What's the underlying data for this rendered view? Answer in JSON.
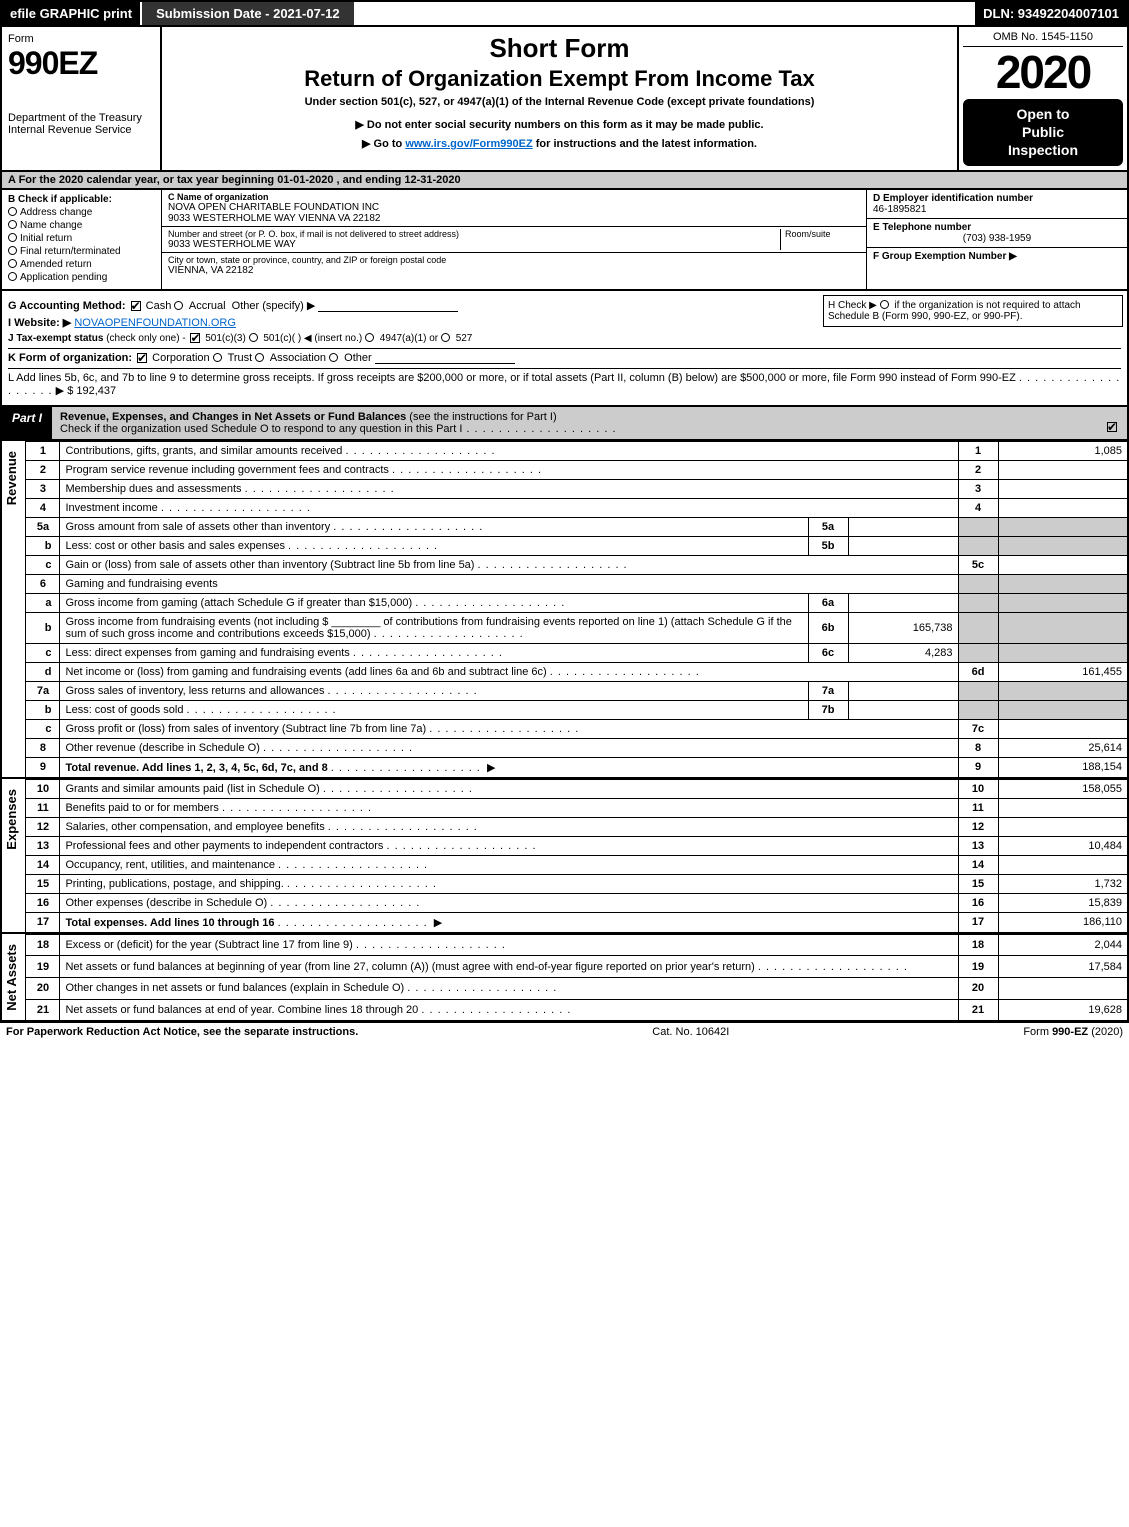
{
  "topbar": {
    "efile": "efile GRAPHIC print",
    "submission": "Submission Date - 2021-07-12",
    "dln": "DLN: 93492204007101"
  },
  "header": {
    "form_label": "Form",
    "form_num": "990EZ",
    "dept1": "Department of the Treasury",
    "dept2": "Internal Revenue Service",
    "title_short": "Short Form",
    "title_return": "Return of Organization Exempt From Income Tax",
    "under": "Under section 501(c), 527, or 4947(a)(1) of the Internal Revenue Code (except private foundations)",
    "warn": "▶ Do not enter social security numbers on this form as it may be made public.",
    "goto_pre": "▶ Go to ",
    "goto_link": "www.irs.gov/Form990EZ",
    "goto_post": " for instructions and the latest information.",
    "omb": "OMB No. 1545-1150",
    "year": "2020",
    "open1": "Open to",
    "open2": "Public",
    "open3": "Inspection"
  },
  "taxyear": "A   For the 2020 calendar year, or tax year beginning 01-01-2020 , and ending 12-31-2020",
  "colB": {
    "title": "B  Check if applicable:",
    "items": [
      "Address change",
      "Name change",
      "Initial return",
      "Final return/terminated",
      "Amended return",
      "Application pending"
    ]
  },
  "colC": {
    "name_label": "C Name of organization",
    "name": "NOVA OPEN CHARITABLE FOUNDATION INC",
    "name_addr": "9033 WESTERHOLME WAY VIENNA VA 22182",
    "street_label": "Number and street (or P. O. box, if mail is not delivered to street address)",
    "room_label": "Room/suite",
    "street": "9033 WESTERHOLME WAY",
    "city_label": "City or town, state or province, country, and ZIP or foreign postal code",
    "city": "VIENNA, VA  22182"
  },
  "colDEF": {
    "d_label": "D Employer identification number",
    "ein": "46-1895821",
    "e_label": "E Telephone number",
    "phone": "(703) 938-1959",
    "f_label": "F Group Exemption Number  ▶"
  },
  "rows": {
    "g_label": "G Accounting Method:",
    "g_cash": "Cash",
    "g_accrual": "Accrual",
    "g_other": "Other (specify) ▶",
    "h_text1": "H  Check ▶",
    "h_text2": "if the organization is not required to attach Schedule B (Form 990, 990-EZ, or 990-PF).",
    "i_label": "I Website: ▶",
    "i_val": "NOVAOPENFOUNDATION.ORG",
    "j_label": "J Tax-exempt status",
    "j_note": "(check only one) -",
    "j_501c3": "501(c)(3)",
    "j_501c": "501(c)(  ) ◀ (insert no.)",
    "j_4947": "4947(a)(1) or",
    "j_527": "527",
    "k_label": "K Form of organization:",
    "k_corp": "Corporation",
    "k_trust": "Trust",
    "k_assoc": "Association",
    "k_other": "Other",
    "l_text": "L Add lines 5b, 6c, and 7b to line 9 to determine gross receipts. If gross receipts are $200,000 or more, or if total assets (Part II, column (B) below) are $500,000 or more, file Form 990 instead of Form 990-EZ",
    "l_amount": "$ 192,437"
  },
  "part1": {
    "tab": "Part I",
    "title_b": "Revenue, Expenses, and Changes in Net Assets or Fund Balances",
    "title": " (see the instructions for Part I)",
    "check": "Check if the organization used Schedule O to respond to any question in this Part I"
  },
  "section_labels": {
    "revenue": "Revenue",
    "expenses": "Expenses",
    "netassets": "Net Assets"
  },
  "revenue": [
    {
      "n": "1",
      "desc": "Contributions, gifts, grants, and similar amounts received",
      "col": "1",
      "amt": "1,085"
    },
    {
      "n": "2",
      "desc": "Program service revenue including government fees and contracts",
      "col": "2",
      "amt": ""
    },
    {
      "n": "3",
      "desc": "Membership dues and assessments",
      "col": "3",
      "amt": ""
    },
    {
      "n": "4",
      "desc": "Investment income",
      "col": "4",
      "amt": ""
    },
    {
      "n": "5a",
      "desc": "Gross amount from sale of assets other than inventory",
      "sub": "5a",
      "subval": "",
      "shade": true
    },
    {
      "n": "b",
      "desc": "Less: cost or other basis and sales expenses",
      "sub": "5b",
      "subval": "",
      "shade": true
    },
    {
      "n": "c",
      "desc": "Gain or (loss) from sale of assets other than inventory (Subtract line 5b from line 5a)",
      "col": "5c",
      "amt": ""
    },
    {
      "n": "6",
      "desc": "Gaming and fundraising events",
      "shade_only": true
    },
    {
      "n": "a",
      "desc": "Gross income from gaming (attach Schedule G if greater than $15,000)",
      "sub": "6a",
      "subval": "",
      "shade": true
    },
    {
      "n": "b",
      "desc": "Gross income from fundraising events (not including $ ________ of contributions from fundraising events reported on line 1) (attach Schedule G if the sum of such gross income and contributions exceeds $15,000)",
      "sub": "6b",
      "subval": "165,738",
      "shade": true
    },
    {
      "n": "c",
      "desc": "Less: direct expenses from gaming and fundraising events",
      "sub": "6c",
      "subval": "4,283",
      "shade": true
    },
    {
      "n": "d",
      "desc": "Net income or (loss) from gaming and fundraising events (add lines 6a and 6b and subtract line 6c)",
      "col": "6d",
      "amt": "161,455"
    },
    {
      "n": "7a",
      "desc": "Gross sales of inventory, less returns and allowances",
      "sub": "7a",
      "subval": "",
      "shade": true
    },
    {
      "n": "b",
      "desc": "Less: cost of goods sold",
      "sub": "7b",
      "subval": "",
      "shade": true
    },
    {
      "n": "c",
      "desc": "Gross profit or (loss) from sales of inventory (Subtract line 7b from line 7a)",
      "col": "7c",
      "amt": ""
    },
    {
      "n": "8",
      "desc": "Other revenue (describe in Schedule O)",
      "col": "8",
      "amt": "25,614"
    },
    {
      "n": "9",
      "desc": "Total revenue. Add lines 1, 2, 3, 4, 5c, 6d, 7c, and 8",
      "col": "9",
      "amt": "188,154",
      "bold": true,
      "arrow": true
    }
  ],
  "expenses": [
    {
      "n": "10",
      "desc": "Grants and similar amounts paid (list in Schedule O)",
      "col": "10",
      "amt": "158,055"
    },
    {
      "n": "11",
      "desc": "Benefits paid to or for members",
      "col": "11",
      "amt": ""
    },
    {
      "n": "12",
      "desc": "Salaries, other compensation, and employee benefits",
      "col": "12",
      "amt": ""
    },
    {
      "n": "13",
      "desc": "Professional fees and other payments to independent contractors",
      "col": "13",
      "amt": "10,484"
    },
    {
      "n": "14",
      "desc": "Occupancy, rent, utilities, and maintenance",
      "col": "14",
      "amt": ""
    },
    {
      "n": "15",
      "desc": "Printing, publications, postage, and shipping.",
      "col": "15",
      "amt": "1,732"
    },
    {
      "n": "16",
      "desc": "Other expenses (describe in Schedule O)",
      "col": "16",
      "amt": "15,839"
    },
    {
      "n": "17",
      "desc": "Total expenses. Add lines 10 through 16",
      "col": "17",
      "amt": "186,110",
      "bold": true,
      "arrow": true
    }
  ],
  "netassets": [
    {
      "n": "18",
      "desc": "Excess or (deficit) for the year (Subtract line 17 from line 9)",
      "col": "18",
      "amt": "2,044"
    },
    {
      "n": "19",
      "desc": "Net assets or fund balances at beginning of year (from line 27, column (A)) (must agree with end-of-year figure reported on prior year's return)",
      "col": "19",
      "amt": "17,584"
    },
    {
      "n": "20",
      "desc": "Other changes in net assets or fund balances (explain in Schedule O)",
      "col": "20",
      "amt": ""
    },
    {
      "n": "21",
      "desc": "Net assets or fund balances at end of year. Combine lines 18 through 20",
      "col": "21",
      "amt": "19,628"
    }
  ],
  "footer": {
    "left": "For Paperwork Reduction Act Notice, see the separate instructions.",
    "mid": "Cat. No. 10642I",
    "right_pre": "Form ",
    "right_b": "990-EZ",
    "right_post": " (2020)"
  }
}
